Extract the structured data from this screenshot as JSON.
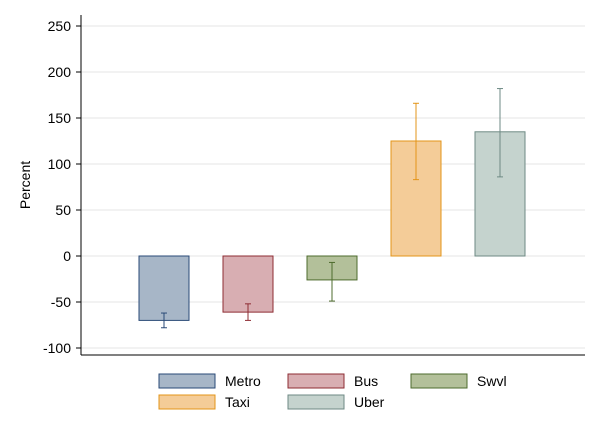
{
  "chart_data": {
    "type": "bar",
    "title": "",
    "xlabel": "",
    "ylabel": "Percent",
    "ylim": [
      -110,
      262
    ],
    "yticks": [
      -100,
      -50,
      0,
      50,
      100,
      150,
      200,
      250
    ],
    "grid": true,
    "legend_position": "bottom",
    "series": [
      {
        "name": "Metro",
        "value": -70,
        "error_low": -78,
        "error_high": -62,
        "fill": "#a7b6c7",
        "stroke": "#2a4a77"
      },
      {
        "name": "Bus",
        "value": -61,
        "error_low": -70,
        "error_high": -52,
        "fill": "#d8aeb2",
        "stroke": "#8e2c33"
      },
      {
        "name": "Swvl",
        "value": -26,
        "error_low": -49,
        "error_high": -7,
        "fill": "#b3c09a",
        "stroke": "#4e6b2e"
      },
      {
        "name": "Taxi",
        "value": 125,
        "error_low": 83,
        "error_high": 166,
        "fill": "#f4cc98",
        "stroke": "#e39418"
      },
      {
        "name": "Uber",
        "value": 135,
        "error_low": 86,
        "error_high": 182,
        "fill": "#c5d3ce",
        "stroke": "#6e8a84"
      }
    ]
  }
}
